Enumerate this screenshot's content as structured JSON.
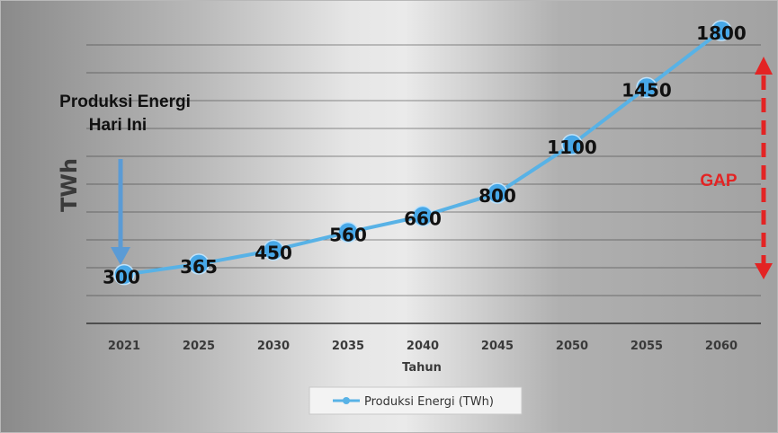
{
  "chart_data": {
    "type": "line",
    "ylabel": "TWh",
    "xlabel": "Tahun",
    "categories": [
      "2021",
      "2025",
      "2030",
      "2035",
      "2040",
      "2045",
      "2050",
      "2055",
      "2060"
    ],
    "series": [
      {
        "name": "Produksi Energi (TWh)",
        "values": [
          300,
          365,
          450,
          560,
          660,
          800,
          1100,
          1450,
          1800
        ],
        "color": "#58b2e6"
      }
    ],
    "ylim": [
      0,
      1900
    ],
    "grid": true,
    "legend": "bottom",
    "annotations": {
      "today_label_line1": "Produksi Energi",
      "today_label_line2": "Hari Ini",
      "gap_label": "GAP"
    },
    "colors": {
      "line": "#58b2e6",
      "marker": "#47a8e8",
      "arrow": "#5b9bd5",
      "gap": "#e32424",
      "grid": "#3a3a3a"
    }
  }
}
